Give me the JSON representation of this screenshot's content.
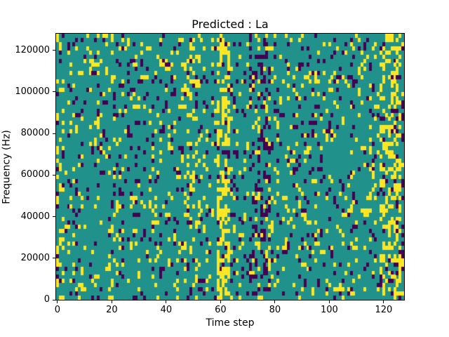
{
  "chart_data": {
    "type": "heatmap",
    "title": "Predicted : La",
    "xlabel": "Time step",
    "ylabel": "Frequency (Hz)",
    "x_range": [
      -0.5,
      127.5
    ],
    "y_range": [
      0,
      128000
    ],
    "x_ticks": [
      0,
      20,
      40,
      60,
      80,
      100,
      120
    ],
    "y_ticks": [
      0,
      20000,
      40000,
      60000,
      80000,
      100000,
      120000
    ],
    "legend": "none",
    "grid_lines": "off",
    "colormap": "viridis-ternary",
    "grid": {
      "cols": 128,
      "rows": 64,
      "cell_values": [
        "teal",
        "yellow",
        "purple"
      ],
      "colors": {
        "teal": "#21918c",
        "yellow": "#fde725",
        "purple": "#440154"
      },
      "background": "#21918c",
      "base_density": {
        "yellow": 0.085,
        "purple": 0.075
      },
      "seed": 1337,
      "features": [
        {
          "x0": 0,
          "x1": 2,
          "yellow": 0.2,
          "purple": 0.08,
          "note": "left-edge yellow specks"
        },
        {
          "x0": 47,
          "x1": 52,
          "yellow": 0.18,
          "purple": 0.08,
          "note": "moderate yellow cluster near x=50"
        },
        {
          "x0": 59,
          "x1": 63,
          "yellow": 0.45,
          "purple": 0.06,
          "note": "strong yellow vertical streak near x=60"
        },
        {
          "x0": 71,
          "x1": 78,
          "yellow": 0.1,
          "purple": 0.28,
          "note": "dark purple cluster near x=75"
        },
        {
          "x0": 119,
          "x1": 126,
          "yellow": 0.38,
          "purple": 0.08,
          "note": "strong yellow streaks near x=122"
        },
        {
          "x0": 127,
          "x1": 127,
          "yellow": 0.08,
          "purple": 0.2,
          "note": "dark right edge"
        }
      ]
    },
    "style": {
      "spine_color": "#000000",
      "figure_background": "#ffffff",
      "tick_label_color": "#000000"
    }
  }
}
